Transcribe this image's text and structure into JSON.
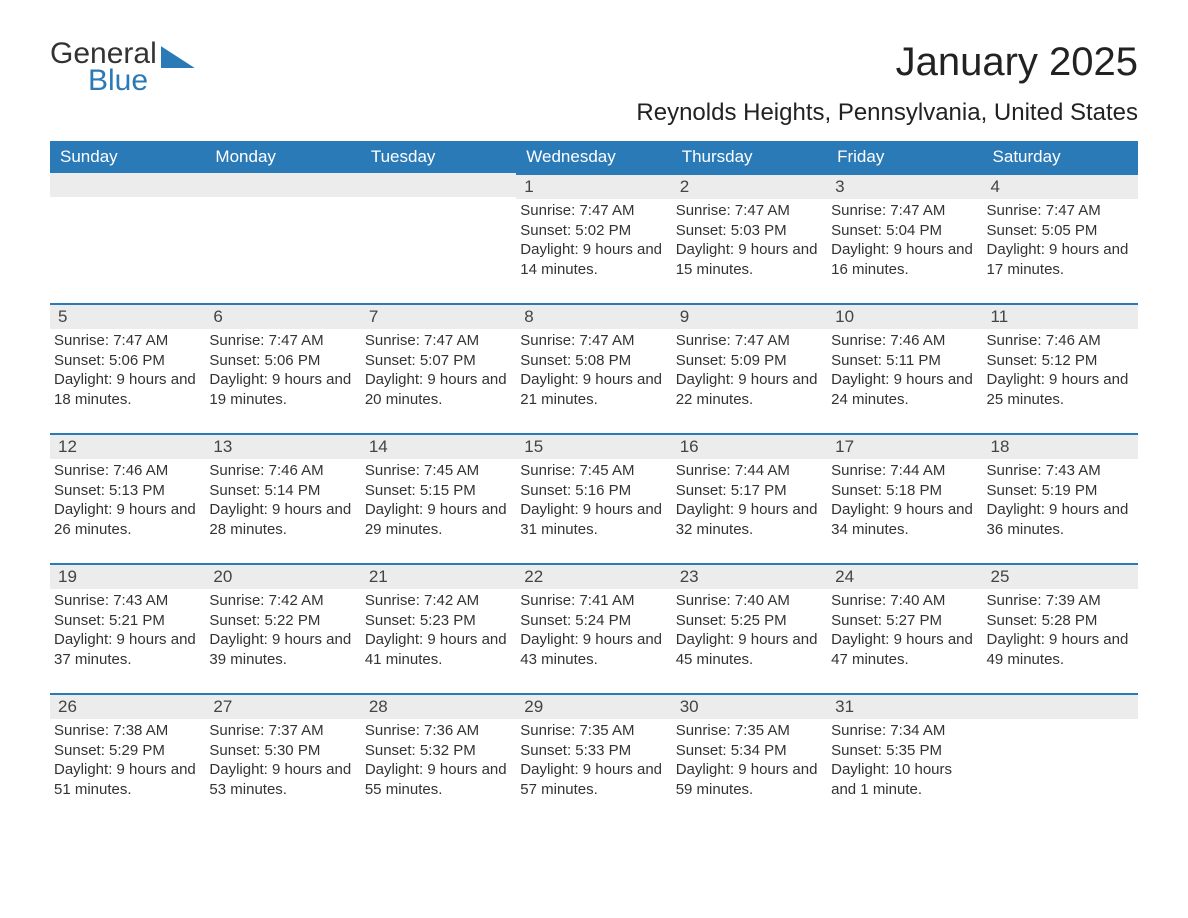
{
  "logo": {
    "line1": "General",
    "line2": "Blue"
  },
  "title": "January 2025",
  "location": "Reynolds Heights, Pennsylvania, United States",
  "colors": {
    "accent": "#2a7ab8",
    "header_bg": "#2a7ab8",
    "daynum_bg": "#ececec",
    "text": "#333333",
    "bg": "#ffffff"
  },
  "day_headers": [
    "Sunday",
    "Monday",
    "Tuesday",
    "Wednesday",
    "Thursday",
    "Friday",
    "Saturday"
  ],
  "weeks": [
    [
      null,
      null,
      null,
      {
        "n": "1",
        "sunrise": "7:47 AM",
        "sunset": "5:02 PM",
        "daylight": "9 hours and 14 minutes."
      },
      {
        "n": "2",
        "sunrise": "7:47 AM",
        "sunset": "5:03 PM",
        "daylight": "9 hours and 15 minutes."
      },
      {
        "n": "3",
        "sunrise": "7:47 AM",
        "sunset": "5:04 PM",
        "daylight": "9 hours and 16 minutes."
      },
      {
        "n": "4",
        "sunrise": "7:47 AM",
        "sunset": "5:05 PM",
        "daylight": "9 hours and 17 minutes."
      }
    ],
    [
      {
        "n": "5",
        "sunrise": "7:47 AM",
        "sunset": "5:06 PM",
        "daylight": "9 hours and 18 minutes."
      },
      {
        "n": "6",
        "sunrise": "7:47 AM",
        "sunset": "5:06 PM",
        "daylight": "9 hours and 19 minutes."
      },
      {
        "n": "7",
        "sunrise": "7:47 AM",
        "sunset": "5:07 PM",
        "daylight": "9 hours and 20 minutes."
      },
      {
        "n": "8",
        "sunrise": "7:47 AM",
        "sunset": "5:08 PM",
        "daylight": "9 hours and 21 minutes."
      },
      {
        "n": "9",
        "sunrise": "7:47 AM",
        "sunset": "5:09 PM",
        "daylight": "9 hours and 22 minutes."
      },
      {
        "n": "10",
        "sunrise": "7:46 AM",
        "sunset": "5:11 PM",
        "daylight": "9 hours and 24 minutes."
      },
      {
        "n": "11",
        "sunrise": "7:46 AM",
        "sunset": "5:12 PM",
        "daylight": "9 hours and 25 minutes."
      }
    ],
    [
      {
        "n": "12",
        "sunrise": "7:46 AM",
        "sunset": "5:13 PM",
        "daylight": "9 hours and 26 minutes."
      },
      {
        "n": "13",
        "sunrise": "7:46 AM",
        "sunset": "5:14 PM",
        "daylight": "9 hours and 28 minutes."
      },
      {
        "n": "14",
        "sunrise": "7:45 AM",
        "sunset": "5:15 PM",
        "daylight": "9 hours and 29 minutes."
      },
      {
        "n": "15",
        "sunrise": "7:45 AM",
        "sunset": "5:16 PM",
        "daylight": "9 hours and 31 minutes."
      },
      {
        "n": "16",
        "sunrise": "7:44 AM",
        "sunset": "5:17 PM",
        "daylight": "9 hours and 32 minutes."
      },
      {
        "n": "17",
        "sunrise": "7:44 AM",
        "sunset": "5:18 PM",
        "daylight": "9 hours and 34 minutes."
      },
      {
        "n": "18",
        "sunrise": "7:43 AM",
        "sunset": "5:19 PM",
        "daylight": "9 hours and 36 minutes."
      }
    ],
    [
      {
        "n": "19",
        "sunrise": "7:43 AM",
        "sunset": "5:21 PM",
        "daylight": "9 hours and 37 minutes."
      },
      {
        "n": "20",
        "sunrise": "7:42 AM",
        "sunset": "5:22 PM",
        "daylight": "9 hours and 39 minutes."
      },
      {
        "n": "21",
        "sunrise": "7:42 AM",
        "sunset": "5:23 PM",
        "daylight": "9 hours and 41 minutes."
      },
      {
        "n": "22",
        "sunrise": "7:41 AM",
        "sunset": "5:24 PM",
        "daylight": "9 hours and 43 minutes."
      },
      {
        "n": "23",
        "sunrise": "7:40 AM",
        "sunset": "5:25 PM",
        "daylight": "9 hours and 45 minutes."
      },
      {
        "n": "24",
        "sunrise": "7:40 AM",
        "sunset": "5:27 PM",
        "daylight": "9 hours and 47 minutes."
      },
      {
        "n": "25",
        "sunrise": "7:39 AM",
        "sunset": "5:28 PM",
        "daylight": "9 hours and 49 minutes."
      }
    ],
    [
      {
        "n": "26",
        "sunrise": "7:38 AM",
        "sunset": "5:29 PM",
        "daylight": "9 hours and 51 minutes."
      },
      {
        "n": "27",
        "sunrise": "7:37 AM",
        "sunset": "5:30 PM",
        "daylight": "9 hours and 53 minutes."
      },
      {
        "n": "28",
        "sunrise": "7:36 AM",
        "sunset": "5:32 PM",
        "daylight": "9 hours and 55 minutes."
      },
      {
        "n": "29",
        "sunrise": "7:35 AM",
        "sunset": "5:33 PM",
        "daylight": "9 hours and 57 minutes."
      },
      {
        "n": "30",
        "sunrise": "7:35 AM",
        "sunset": "5:34 PM",
        "daylight": "9 hours and 59 minutes."
      },
      {
        "n": "31",
        "sunrise": "7:34 AM",
        "sunset": "5:35 PM",
        "daylight": "10 hours and 1 minute."
      },
      null
    ]
  ],
  "labels": {
    "sunrise": "Sunrise: ",
    "sunset": "Sunset: ",
    "daylight": "Daylight: "
  }
}
